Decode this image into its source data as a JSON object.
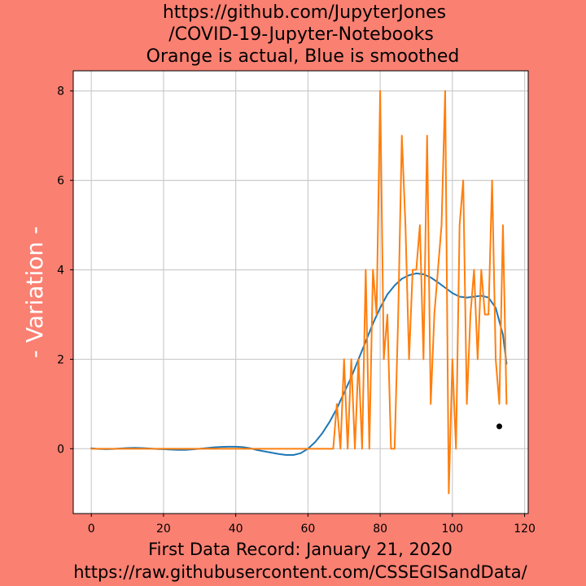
{
  "colors": {
    "figure_background": "#fa8072",
    "axes_background": "#ffffff",
    "grid": "#cccccc",
    "actual_line": "#ff7f0e",
    "smoothed_line": "#1f77b4",
    "marker": "#000000"
  },
  "chart_data": {
    "type": "line",
    "title_lines": [
      "https://github.com/JupyterJones",
      "/COVID-19-Jupyter-Notebooks",
      "Orange is actual, Blue is smoothed"
    ],
    "xlabel_lines": [
      "First Data Record: January 21, 2020",
      "https://raw.githubusercontent.com/CSSEGISandData/"
    ],
    "ylabel": "- Variation -",
    "xlim": [
      -5,
      121
    ],
    "ylim": [
      -1.45,
      8.45
    ],
    "x_ticks": [
      0,
      20,
      40,
      60,
      80,
      100,
      120
    ],
    "y_ticks": [
      0,
      2,
      4,
      6,
      8
    ],
    "grid": true,
    "series": [
      {
        "name": "actual",
        "color": "#ff7f0e",
        "x": [
          0,
          1,
          2,
          3,
          4,
          5,
          6,
          7,
          8,
          9,
          10,
          11,
          12,
          13,
          14,
          15,
          16,
          17,
          18,
          19,
          20,
          21,
          22,
          23,
          24,
          25,
          26,
          27,
          28,
          29,
          30,
          31,
          32,
          33,
          34,
          35,
          36,
          37,
          38,
          39,
          40,
          41,
          42,
          43,
          44,
          45,
          46,
          47,
          48,
          49,
          50,
          51,
          52,
          53,
          54,
          55,
          56,
          57,
          58,
          59,
          60,
          61,
          62,
          63,
          64,
          65,
          66,
          67,
          68,
          69,
          70,
          71,
          72,
          73,
          74,
          75,
          76,
          77,
          78,
          79,
          80,
          81,
          82,
          83,
          84,
          85,
          86,
          87,
          88,
          89,
          90,
          91,
          92,
          93,
          94,
          95,
          96,
          97,
          98,
          99,
          100,
          101,
          102,
          103,
          104,
          105,
          106,
          107,
          108,
          109,
          110,
          111,
          112,
          113,
          114,
          115
        ],
        "y": [
          0,
          0,
          0,
          0,
          0,
          0,
          0,
          0,
          0,
          0,
          0,
          0,
          0,
          0,
          0,
          0,
          0,
          0,
          0,
          0,
          0,
          0,
          0,
          0,
          0,
          0,
          0,
          0,
          0,
          0,
          0,
          0,
          0,
          0,
          0,
          0,
          0,
          0,
          0,
          0,
          0,
          0,
          0,
          0,
          0,
          0,
          0,
          0,
          0,
          0,
          0,
          0,
          0,
          0,
          0,
          0,
          0,
          0,
          0,
          0,
          0,
          0,
          0,
          0,
          0,
          0,
          0,
          0,
          1,
          0,
          2,
          0,
          2,
          0,
          2,
          0,
          4,
          0,
          4,
          3,
          8,
          2,
          3,
          0,
          0,
          3,
          7,
          5,
          2,
          4,
          4,
          5,
          2,
          7,
          1,
          3,
          4,
          5,
          8,
          -1,
          2,
          0,
          5,
          6,
          1,
          3,
          4,
          2,
          4,
          3,
          3,
          6,
          2,
          1,
          5,
          1
        ]
      },
      {
        "name": "smoothed",
        "color": "#1f77b4",
        "x": [
          0,
          2,
          4,
          6,
          8,
          10,
          12,
          14,
          16,
          18,
          20,
          22,
          24,
          26,
          28,
          30,
          32,
          34,
          36,
          38,
          40,
          42,
          44,
          46,
          48,
          50,
          52,
          54,
          56,
          58,
          60,
          62,
          64,
          66,
          68,
          70,
          72,
          74,
          76,
          78,
          80,
          82,
          84,
          86,
          88,
          90,
          92,
          94,
          96,
          98,
          100,
          102,
          104,
          106,
          108,
          110,
          112,
          114,
          115
        ],
        "y": [
          0.01,
          -0.005,
          -0.01,
          -0.005,
          0.005,
          0.015,
          0.02,
          0.015,
          0.005,
          -0.005,
          -0.01,
          -0.02,
          -0.025,
          -0.025,
          -0.015,
          0,
          0.015,
          0.03,
          0.04,
          0.045,
          0.045,
          0.035,
          0.01,
          -0.03,
          -0.06,
          -0.09,
          -0.12,
          -0.14,
          -0.14,
          -0.1,
          0,
          0.15,
          0.35,
          0.6,
          0.9,
          1.25,
          1.6,
          2.0,
          2.4,
          2.8,
          3.15,
          3.45,
          3.65,
          3.8,
          3.88,
          3.92,
          3.9,
          3.83,
          3.72,
          3.6,
          3.48,
          3.4,
          3.38,
          3.4,
          3.42,
          3.38,
          3.15,
          2.55,
          1.9
        ]
      }
    ],
    "points": [
      {
        "x": 113,
        "y": 0.5
      }
    ]
  }
}
